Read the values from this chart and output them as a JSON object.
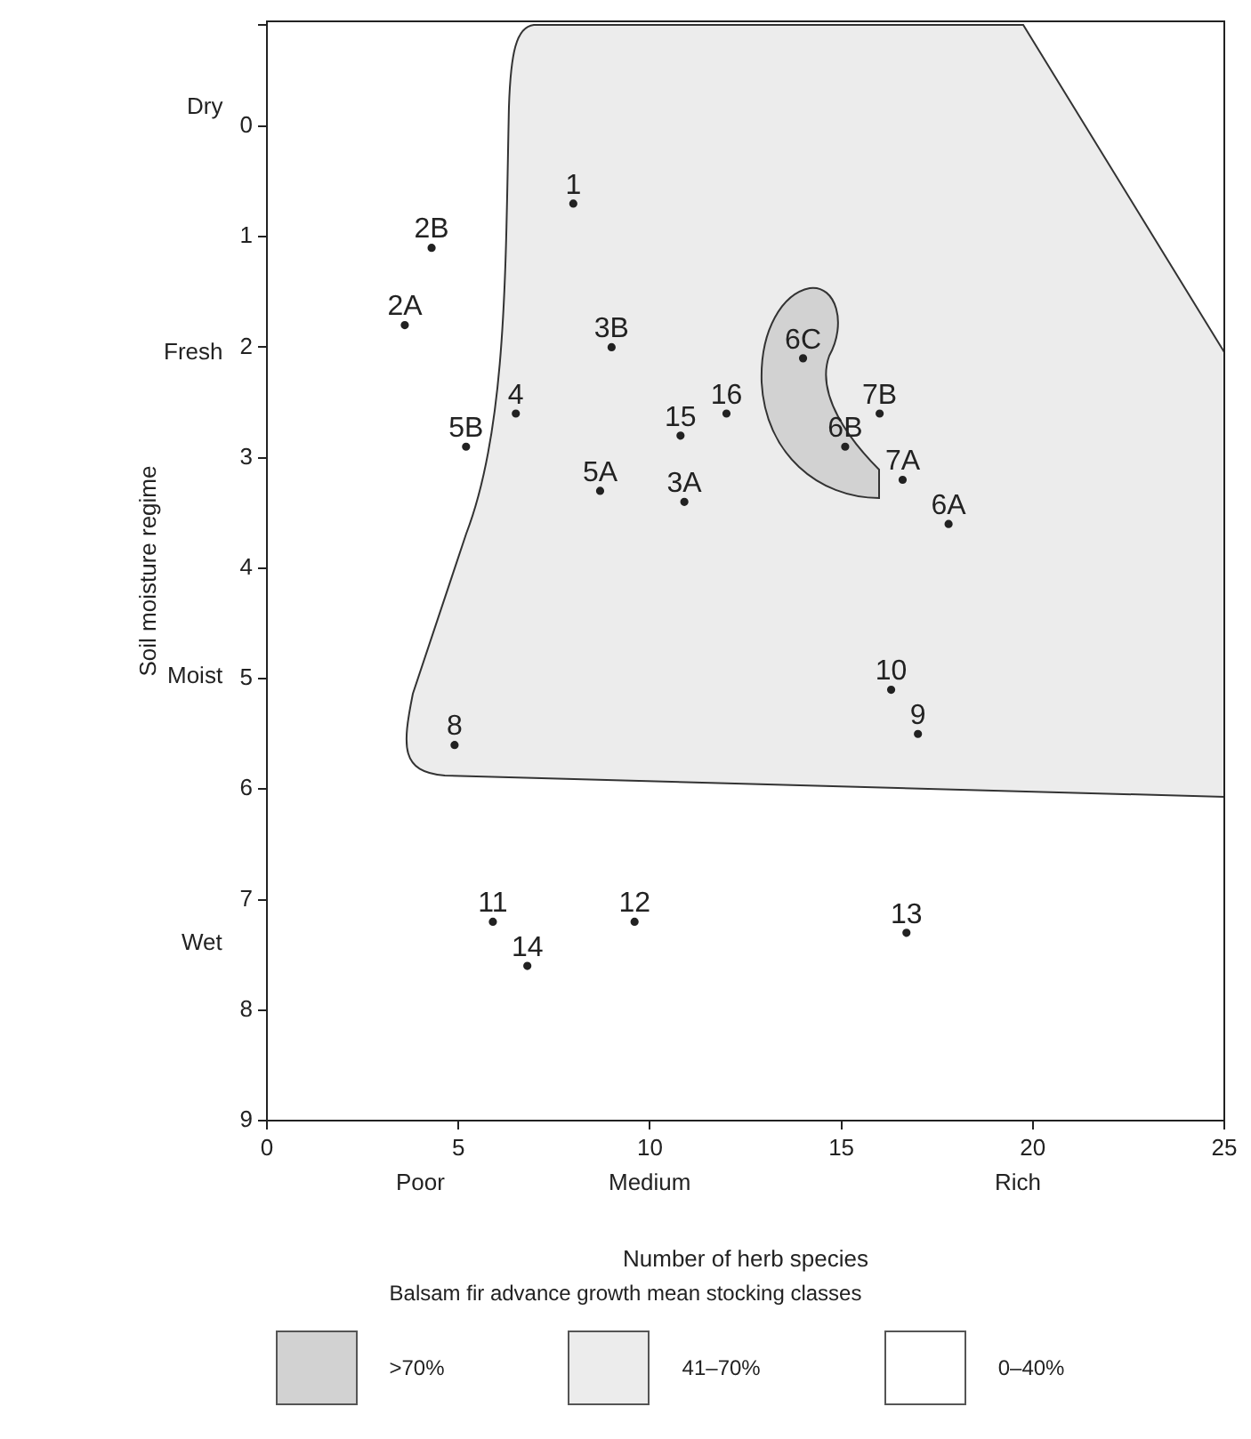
{
  "chart_data": {
    "type": "scatter",
    "xlabel": "Number of herb species",
    "ylabel": "Soil moisture regime",
    "legend_title": "Balsam fir advance growth mean stocking classes",
    "grid": false,
    "marker": "circle",
    "xlim": [
      0,
      25
    ],
    "xticks": [
      0,
      5,
      10,
      15,
      20,
      25
    ],
    "ylim": [
      9,
      -0.95
    ],
    "yticks": [
      {
        "value": -0.92,
        "label": null
      },
      0,
      1,
      2,
      3,
      4,
      5,
      6,
      7,
      8,
      9
    ],
    "series": [
      {
        "name": "1",
        "color": "#222222",
        "x": [
          8.0
        ],
        "values": [
          0.7
        ]
      },
      {
        "name": "2B",
        "color": "#222222",
        "x": [
          4.3
        ],
        "values": [
          1.1
        ]
      },
      {
        "name": "2A",
        "color": "#222222",
        "x": [
          3.6
        ],
        "values": [
          1.8
        ]
      },
      {
        "name": "3B",
        "color": "#222222",
        "x": [
          9.0
        ],
        "values": [
          2.0
        ]
      },
      {
        "name": "4",
        "color": "#222222",
        "x": [
          6.5
        ],
        "values": [
          2.6
        ]
      },
      {
        "name": "5B",
        "color": "#222222",
        "x": [
          5.2
        ],
        "values": [
          2.9
        ]
      },
      {
        "name": "15",
        "color": "#222222",
        "x": [
          10.8
        ],
        "values": [
          2.8
        ]
      },
      {
        "name": "16",
        "color": "#222222",
        "x": [
          12.0
        ],
        "values": [
          2.6
        ]
      },
      {
        "name": "6C",
        "color": "#222222",
        "x": [
          14.0
        ],
        "values": [
          2.1
        ]
      },
      {
        "name": "7B",
        "color": "#222222",
        "x": [
          16.0
        ],
        "values": [
          2.6
        ]
      },
      {
        "name": "6B",
        "color": "#222222",
        "x": [
          15.1
        ],
        "values": [
          2.9
        ]
      },
      {
        "name": "7A",
        "color": "#222222",
        "x": [
          16.6
        ],
        "values": [
          3.2
        ]
      },
      {
        "name": "6A",
        "color": "#222222",
        "x": [
          17.8
        ],
        "values": [
          3.6
        ]
      },
      {
        "name": "5A",
        "color": "#222222",
        "x": [
          8.7
        ],
        "values": [
          3.3
        ]
      },
      {
        "name": "3A",
        "color": "#222222",
        "x": [
          10.9
        ],
        "values": [
          3.4
        ]
      },
      {
        "name": "10",
        "color": "#222222",
        "x": [
          16.3
        ],
        "values": [
          5.1
        ]
      },
      {
        "name": "9",
        "color": "#222222",
        "x": [
          17.0
        ],
        "values": [
          5.5
        ]
      },
      {
        "name": "8",
        "color": "#222222",
        "x": [
          4.9
        ],
        "values": [
          5.6
        ]
      },
      {
        "name": "11",
        "color": "#222222",
        "x": [
          5.9
        ],
        "values": [
          7.2
        ]
      },
      {
        "name": "12",
        "color": "#222222",
        "x": [
          9.6
        ],
        "values": [
          7.2
        ]
      },
      {
        "name": "13",
        "color": "#222222",
        "x": [
          16.7
        ],
        "values": [
          7.3
        ]
      },
      {
        "name": "14",
        "color": "#222222",
        "x": [
          6.8
        ],
        "values": [
          7.6
        ]
      }
    ],
    "annotations": [
      "Dry",
      "Fresh",
      "Moist",
      "Wet",
      "Poor",
      "Medium",
      "Rich",
      ">70%",
      "41–70%",
      "0–40%"
    ]
  }
}
